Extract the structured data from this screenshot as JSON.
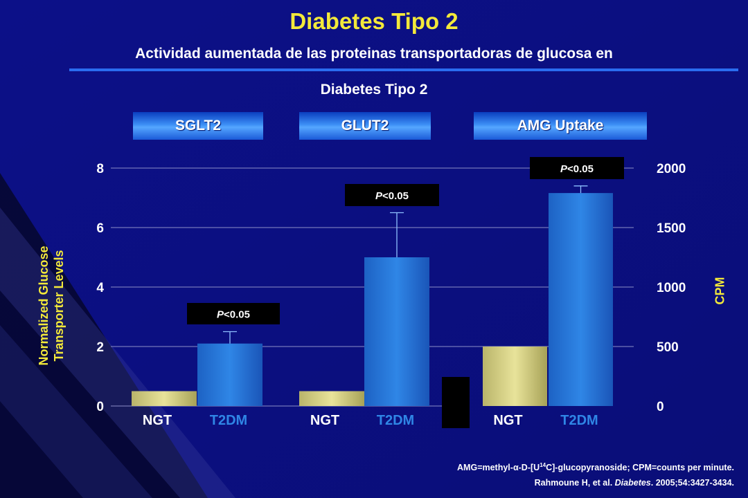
{
  "slide": {
    "title": "Diabetes Tipo 2",
    "subtitle_line1": "Actividad aumentada de las proteinas transportadoras de glucosa en",
    "subtitle_line2": "Diabetes Tipo 2",
    "footnote_line1_pre": "AMG=methyl-",
    "footnote_alpha": "α",
    "footnote_line1_mid": "-D-[U",
    "footnote_line1_sup": "14",
    "footnote_line1_post": "C]-glucopyranoside; CPM=counts per minute.",
    "footnote_line2_pre": "Rahmoune H, et al. ",
    "footnote_line2_journal": "Diabetes",
    "footnote_line2_post": ". 2005;54:3427-3434.",
    "colors": {
      "background": "#0c1088",
      "title": "#f3e93a",
      "ngt_bar": "#e8e39a",
      "t2dm_bar": "#2f86e6",
      "divider": "#2a6cf0"
    }
  },
  "chart_data": [
    {
      "type": "bar",
      "panel": "SGLT2",
      "categories": [
        "NGT",
        "T2DM"
      ],
      "values": [
        0.5,
        2.1
      ],
      "error_upper": [
        null,
        2.5
      ],
      "p_label_prefix": "P",
      "p_label_suffix": "<0.05",
      "ylabel": "Normalized Glucose Transporter Levels",
      "ylim": [
        0,
        8
      ],
      "yticks": [
        "0",
        "2",
        "4",
        "6",
        "8"
      ]
    },
    {
      "type": "bar",
      "panel": "GLUT2",
      "categories": [
        "NGT",
        "T2DM"
      ],
      "values": [
        0.5,
        5.0
      ],
      "error_upper": [
        null,
        6.5
      ],
      "p_label_prefix": "P",
      "p_label_suffix": "<0.05",
      "ylim": [
        0,
        8
      ]
    },
    {
      "type": "bar",
      "panel": "AMG Uptake",
      "categories": [
        "NGT",
        "T2DM"
      ],
      "values": [
        500,
        1790
      ],
      "error_upper": [
        null,
        1850
      ],
      "p_label_prefix": "P",
      "p_label_suffix": "<0.05",
      "ylabel": "CPM",
      "ylim": [
        0,
        2000
      ],
      "yticks": [
        "0",
        "500",
        "1000",
        "1500",
        "2000"
      ]
    }
  ]
}
